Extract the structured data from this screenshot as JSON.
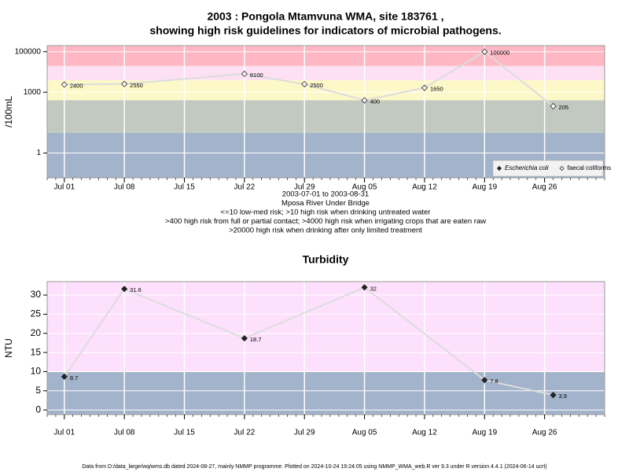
{
  "chart_data": [
    {
      "type": "line",
      "title_lines": [
        "2003 : Pongola Mtamvuna WMA, site 183761 ,",
        "showing high risk guidelines for indicators of microbial pathogens."
      ],
      "y_label": "/100mL",
      "log_scale": true,
      "ylim": [
        0.06,
        200000
      ],
      "yticks": [
        1,
        1000,
        100000
      ],
      "xlim": [
        "2003-06-29",
        "2003-09-02"
      ],
      "xticks": [
        {
          "value": "2003-07-01",
          "label": "Jul 01"
        },
        {
          "value": "2003-07-08",
          "label": "Jul 08"
        },
        {
          "value": "2003-07-15",
          "label": "Jul 15"
        },
        {
          "value": "2003-07-22",
          "label": "Jul 22"
        },
        {
          "value": "2003-07-29",
          "label": "Jul 29"
        },
        {
          "value": "2003-08-05",
          "label": "Aug 05"
        },
        {
          "value": "2003-08-12",
          "label": "Aug 12"
        },
        {
          "value": "2003-08-19",
          "label": "Aug 19"
        },
        {
          "value": "2003-08-26",
          "label": "Aug 26"
        }
      ],
      "bands": {
        "breaks": [
          10,
          400,
          4000,
          20000
        ],
        "colors": [
          "#a3b3cb",
          "#c2c9c0",
          "#fdf8c8",
          "#fde0f4",
          "#ffb7c4"
        ]
      },
      "grid": true,
      "legend": "lower right",
      "series": [
        {
          "name": "Escherichia coli",
          "color": "#222222",
          "marker_fill": "#222222",
          "x": [],
          "values": []
        },
        {
          "name": "faecal coliforms",
          "color": "#222222",
          "marker_fill": "#ffffff",
          "line_color": "#dcdcdc",
          "x": [
            "2003-07-01",
            "2003-07-08",
            "2003-07-22",
            "2003-07-29",
            "2003-08-05",
            "2003-08-12",
            "2003-08-19",
            "2003-08-27"
          ],
          "values": [
            2400,
            2550,
            8100,
            2500,
            400,
            1650,
            100000,
            205
          ]
        }
      ],
      "notes": [
        "2003-07-01 to 2003-08-31",
        "Mposa River Under Bridge",
        "<=10 low-med risk; >10 high risk when drinking untreated water",
        ">400 high risk from full or partial contact; >4000 high risk when irrigating crops that are eaten raw",
        ">20000 high risk when drinking after only limited treatment"
      ]
    },
    {
      "type": "line",
      "title_lines": [
        "Turbidity"
      ],
      "y_label": "NTU",
      "log_scale": false,
      "ylim": [
        -1.2,
        33.5
      ],
      "yticks": [
        0,
        5,
        10,
        15,
        20,
        25,
        30
      ],
      "xlim": [
        "2003-06-29",
        "2003-09-02"
      ],
      "xticks": [
        {
          "value": "2003-07-01",
          "label": "Jul 01"
        },
        {
          "value": "2003-07-08",
          "label": "Jul 08"
        },
        {
          "value": "2003-07-15",
          "label": "Jul 15"
        },
        {
          "value": "2003-07-22",
          "label": "Jul 22"
        },
        {
          "value": "2003-07-29",
          "label": "Jul 29"
        },
        {
          "value": "2003-08-05",
          "label": "Aug 05"
        },
        {
          "value": "2003-08-12",
          "label": "Aug 12"
        },
        {
          "value": "2003-08-19",
          "label": "Aug 19"
        },
        {
          "value": "2003-08-26",
          "label": "Aug 26"
        }
      ],
      "bands": {
        "breaks": [
          10
        ],
        "colors": [
          "#a3b3cb",
          "#fde0fc"
        ]
      },
      "grid": true,
      "series": [
        {
          "name": "Turbidity",
          "color": "#222222",
          "marker_fill": "#222222",
          "line_color": "#dcdcdc",
          "x": [
            "2003-07-01",
            "2003-07-08",
            "2003-07-22",
            "2003-08-05",
            "2003-08-19",
            "2003-08-27"
          ],
          "values": [
            8.7,
            31.6,
            18.7,
            32,
            7.8,
            3.9
          ]
        }
      ]
    }
  ],
  "footer": "Data from D:/data_large/wq/wms.db dated 2024-08-27, mainly NMMP programme. Plotted on 2024-10-24 19:24:05 using NMMP_WMA_web.R ver 9.3 under R version 4.4.1 (2024-06-14 ucrt)"
}
